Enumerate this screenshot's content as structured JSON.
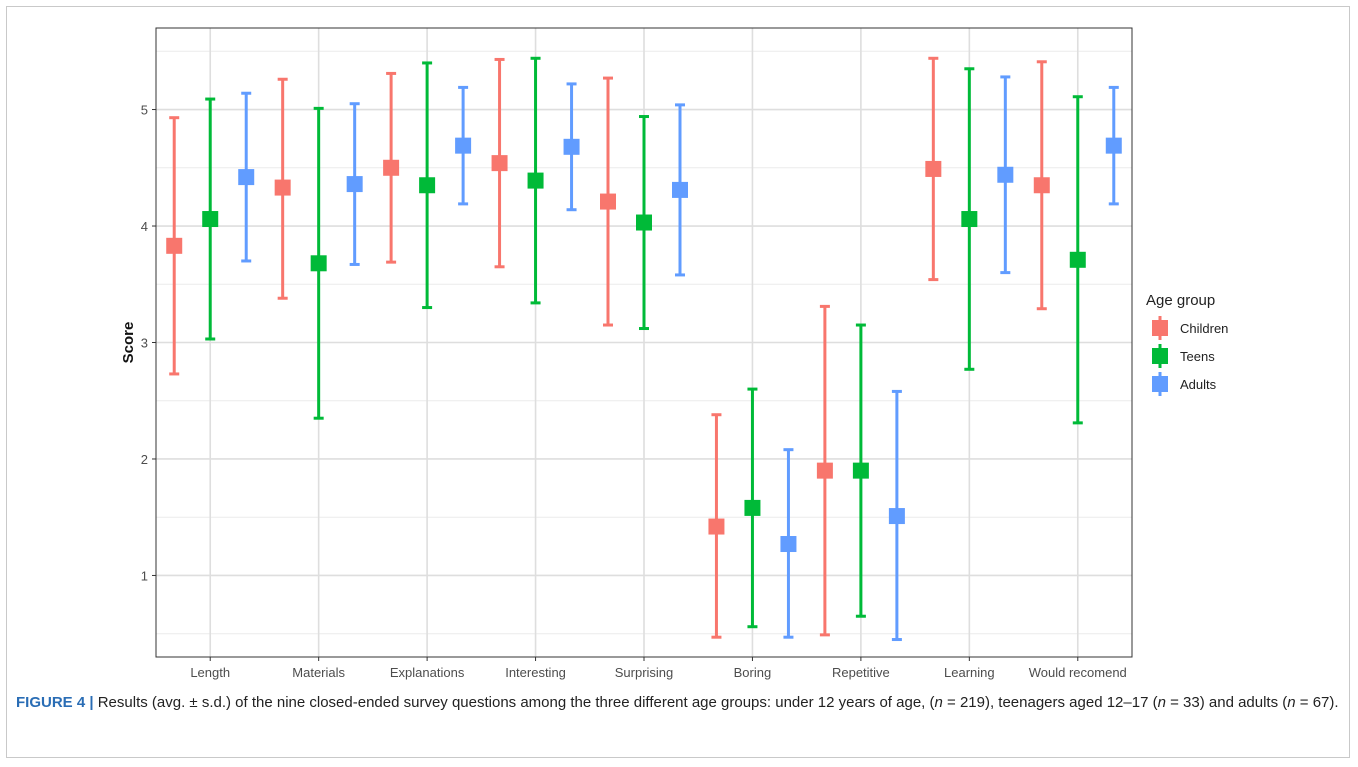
{
  "figure": {
    "label": "FIGURE 4 |",
    "caption_parts": [
      {
        "text": " Results (avg. ± s.d.) of the nine closed-ended survey questions among the three different age groups: under 12 years of age, (",
        "italic": false
      },
      {
        "text": "n",
        "italic": true
      },
      {
        "text": " = 219), teenagers aged 12–17 (",
        "italic": false
      },
      {
        "text": "n",
        "italic": true
      },
      {
        "text": " = 33) and adults (",
        "italic": false
      },
      {
        "text": "n",
        "italic": true
      },
      {
        "text": " = 67).",
        "italic": false
      }
    ]
  },
  "chart_data": {
    "type": "scatter",
    "subtype": "point-with-errorbars",
    "title": "",
    "xlabel": "",
    "ylabel": "Score",
    "ylim": [
      0.3,
      5.7
    ],
    "yticks": [
      1,
      2,
      3,
      4,
      5
    ],
    "grid": true,
    "legend": {
      "title": "Age group",
      "position": "right"
    },
    "categories": [
      "Length",
      "Materials",
      "Explanations",
      "Interesting",
      "Surprising",
      "Boring",
      "Repetitive",
      "Learning",
      "Would recomend"
    ],
    "series": [
      {
        "name": "Children",
        "color": "#f8766d",
        "mean": [
          3.83,
          4.33,
          4.5,
          4.54,
          4.21,
          1.42,
          1.9,
          4.49,
          4.35
        ],
        "lower": [
          2.73,
          3.38,
          3.69,
          3.65,
          3.15,
          0.47,
          0.49,
          3.54,
          3.29
        ],
        "upper": [
          4.93,
          5.26,
          5.31,
          5.43,
          5.27,
          2.38,
          3.31,
          5.44,
          5.41
        ]
      },
      {
        "name": "Teens",
        "color": "#00ba38",
        "mean": [
          4.06,
          3.68,
          4.35,
          4.39,
          4.03,
          1.58,
          1.9,
          4.06,
          3.71
        ],
        "lower": [
          3.03,
          2.35,
          3.3,
          3.34,
          3.12,
          0.56,
          0.65,
          2.77,
          2.31
        ],
        "upper": [
          5.09,
          5.01,
          5.4,
          5.44,
          4.94,
          2.6,
          3.15,
          5.35,
          5.11
        ]
      },
      {
        "name": "Adults",
        "color": "#619cff",
        "mean": [
          4.42,
          4.36,
          4.69,
          4.68,
          4.31,
          1.27,
          1.51,
          4.44,
          4.69
        ],
        "lower": [
          3.7,
          3.67,
          4.19,
          4.14,
          3.58,
          0.47,
          0.45,
          3.6,
          4.19
        ],
        "upper": [
          5.14,
          5.05,
          5.19,
          5.22,
          5.04,
          2.08,
          2.58,
          5.28,
          5.19
        ]
      }
    ]
  }
}
